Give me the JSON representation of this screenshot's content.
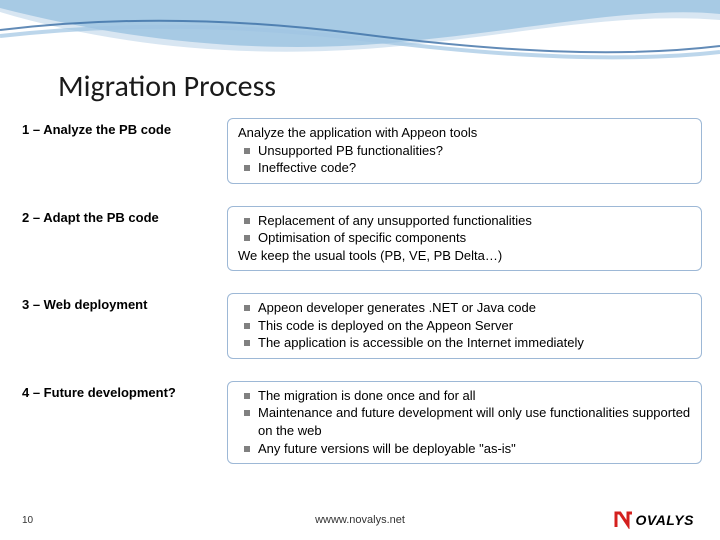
{
  "colors": {
    "box_border": "#9db8d6",
    "bullet": "#808080",
    "wave_light": "#d8e6f2",
    "wave_mid": "#9fc4e2",
    "wave_dark": "#3b6ea5",
    "logo_red": "#d4201e"
  },
  "title": "Migration Process",
  "rows": [
    {
      "label": "1 – Analyze the PB code",
      "lines": [
        {
          "type": "plain",
          "text": "Analyze the application with Appeon tools"
        },
        {
          "type": "bullet",
          "text": "Unsupported PB functionalities?"
        },
        {
          "type": "bullet",
          "text": "Ineffective code?"
        }
      ]
    },
    {
      "label": "2 – Adapt the PB code",
      "lines": [
        {
          "type": "bullet",
          "text": "Replacement of any unsupported functionalities"
        },
        {
          "type": "bullet",
          "text": "Optimisation of specific components"
        },
        {
          "type": "plain",
          "text": "We keep the usual tools (PB, VE, PB Delta…)"
        }
      ]
    },
    {
      "label": "3 – Web deployment",
      "lines": [
        {
          "type": "bullet",
          "text": "Appeon developer generates .NET or Java code"
        },
        {
          "type": "bullet",
          "text": "This code is deployed on the Appeon Server"
        },
        {
          "type": "bullet",
          "text": "The application is accessible on the Internet immediately"
        }
      ]
    },
    {
      "label": "4 – Future development?",
      "lines": [
        {
          "type": "bullet",
          "text": "The migration is done once and for all"
        },
        {
          "type": "bullet",
          "text": "Maintenance and future development will only use functionalities supported on the web"
        },
        {
          "type": "bullet",
          "text": "Any future versions will be deployable \"as-is\""
        }
      ]
    }
  ],
  "footer": {
    "page": "10",
    "url": "wwww.novalys.net",
    "logo_text": "OVALYS"
  }
}
